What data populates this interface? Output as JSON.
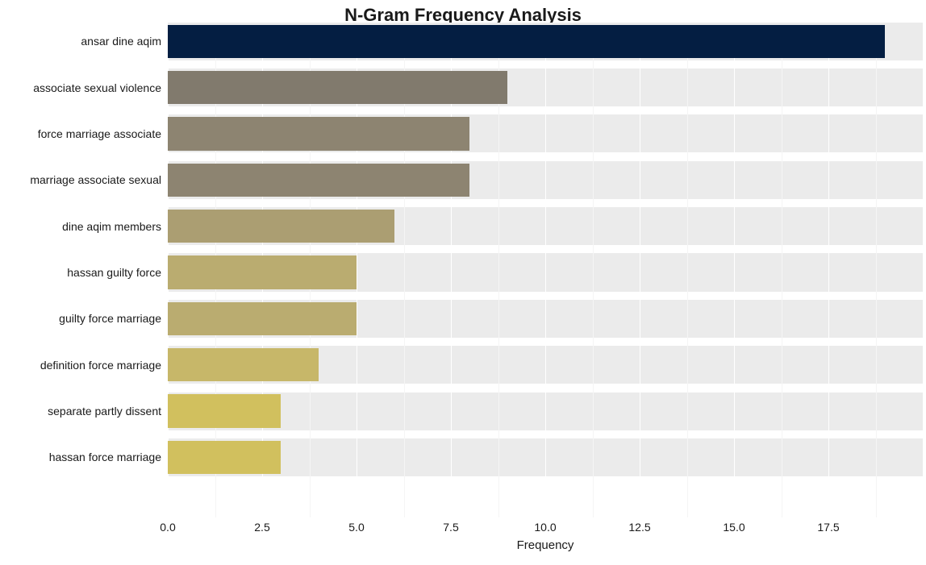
{
  "chart": {
    "type": "bar-horizontal",
    "title": "N-Gram Frequency Analysis",
    "title_fontsize": 22,
    "title_fontweight": "bold",
    "title_color": "#1a1a1a",
    "xlabel": "Frequency",
    "xlabel_fontsize": 15,
    "xlim_min": 0.0,
    "xlim_max": 20.0,
    "xtick_step": 2.5,
    "xticks": [
      "0.0",
      "2.5",
      "5.0",
      "7.5",
      "10.0",
      "12.5",
      "15.0",
      "17.5"
    ],
    "xtick_values": [
      0.0,
      2.5,
      5.0,
      7.5,
      10.0,
      12.5,
      15.0,
      17.5
    ],
    "xminor_values": [
      1.25,
      3.75,
      6.25,
      8.75,
      11.25,
      13.75,
      16.25,
      18.75
    ],
    "plot_bg": "#ffffff",
    "band_bg": "#ebebeb",
    "grid_color": "#ffffff",
    "ytick_fontsize": 14,
    "xtick_fontsize": 14,
    "bar_rel_height": 0.72,
    "categories": [
      "ansar dine aqim",
      "associate sexual violence",
      "force marriage associate",
      "marriage associate sexual",
      "dine aqim members",
      "hassan guilty force",
      "guilty force marriage",
      "definition force marriage",
      "separate partly dissent",
      "hassan force marriage"
    ],
    "values": [
      19,
      9,
      8,
      8,
      6,
      5,
      5,
      4,
      3,
      3
    ],
    "bar_colors": [
      "#041e42",
      "#817a6d",
      "#8d8471",
      "#8d8471",
      "#ab9e72",
      "#baac70",
      "#baac70",
      "#c7b769",
      "#d1c05e",
      "#d1c05e"
    ]
  }
}
